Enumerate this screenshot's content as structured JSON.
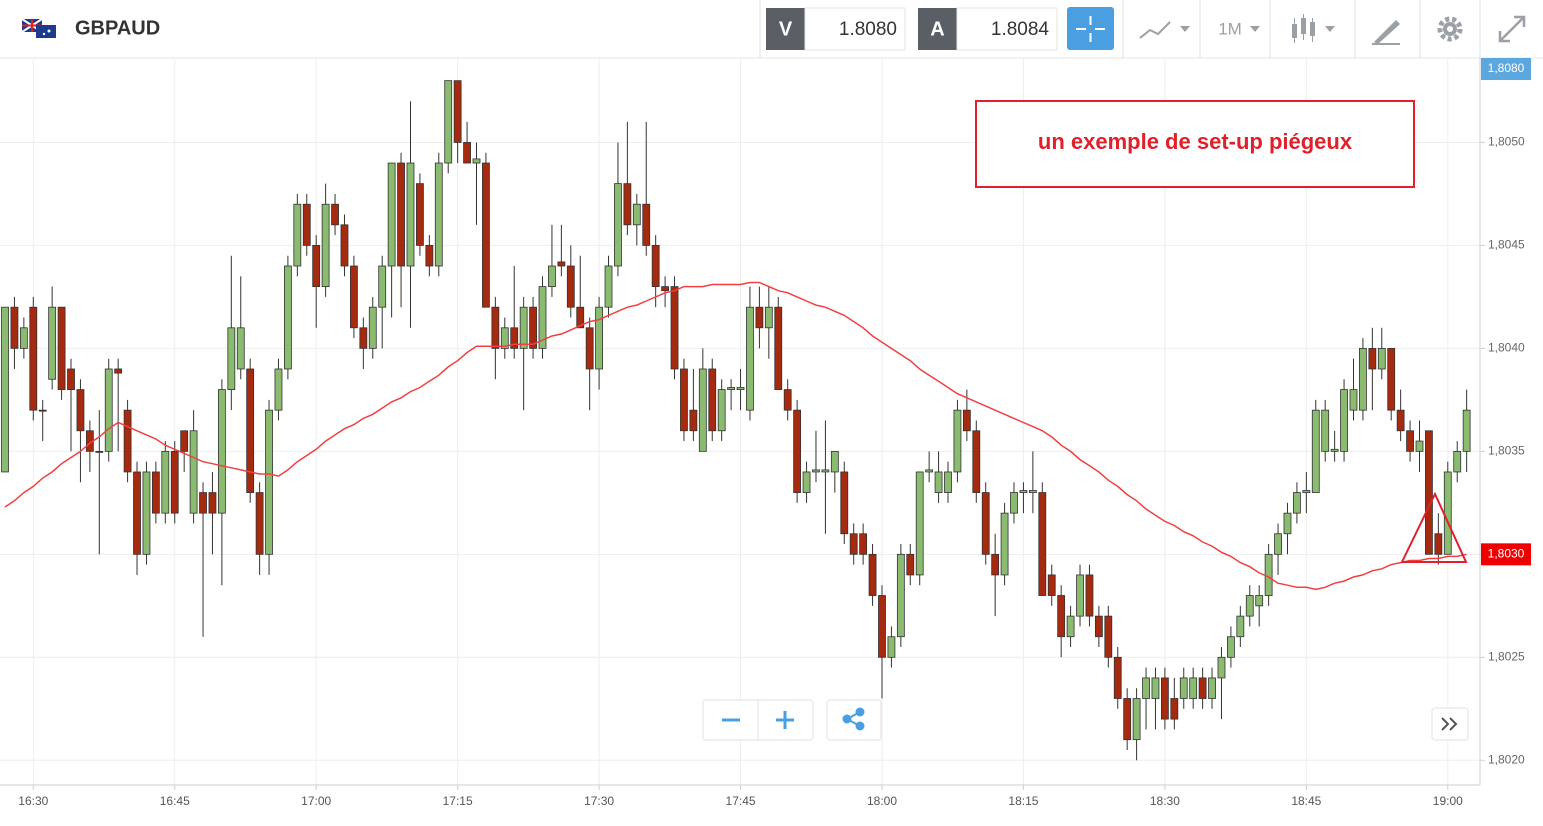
{
  "header": {
    "symbol": "GBPAUD",
    "bid": {
      "label": "V",
      "price": "1.8080"
    },
    "ask": {
      "label": "A",
      "price": "1.8084"
    },
    "timeframe": "1M"
  },
  "chart_data": {
    "type": "candlestick",
    "annotation": "un exemple de set-up piégeux",
    "up_color": "#8bbb70",
    "down_color": "#a52a10",
    "ma_color": "#f04040",
    "grid": true,
    "ylim": [
      1.80188,
      1.80541
    ],
    "yticks": [
      {
        "value": 1.802,
        "label": "1,8020"
      },
      {
        "value": 1.8025,
        "label": "1,8025"
      },
      {
        "value": 1.803,
        "label": "1,8030"
      },
      {
        "value": 1.8035,
        "label": "1,8035"
      },
      {
        "value": 1.804,
        "label": "1,8040"
      },
      {
        "value": 1.8045,
        "label": "1,8045"
      },
      {
        "value": 1.805,
        "label": "1,8050"
      }
    ],
    "price_badges": [
      {
        "value": 1.808,
        "label": "1,8080",
        "color": "#5ba7de"
      },
      {
        "value": 1.803,
        "label": "1,8030",
        "color": "#ee0000"
      }
    ],
    "categories": [
      null,
      null,
      null,
      "16:30",
      null,
      null,
      null,
      null,
      null,
      null,
      null,
      null,
      null,
      null,
      null,
      null,
      null,
      null,
      "16:45",
      null,
      null,
      null,
      null,
      null,
      null,
      null,
      null,
      null,
      null,
      null,
      null,
      null,
      null,
      "17:00",
      null,
      null,
      null,
      null,
      null,
      null,
      null,
      null,
      null,
      null,
      null,
      null,
      null,
      null,
      "17:15",
      null,
      null,
      null,
      null,
      null,
      null,
      null,
      null,
      null,
      null,
      null,
      null,
      null,
      null,
      "17:30",
      null,
      null,
      null,
      null,
      null,
      null,
      null,
      null,
      null,
      null,
      null,
      null,
      null,
      null,
      "17:45",
      null,
      null,
      null,
      null,
      null,
      null,
      null,
      null,
      null,
      null,
      null,
      null,
      null,
      null,
      "18:00",
      null,
      null,
      null,
      null,
      null,
      null,
      null,
      null,
      null,
      null,
      null,
      null,
      null,
      null,
      "18:15",
      null,
      null,
      null,
      null,
      null,
      null,
      null,
      null,
      null,
      null,
      null,
      null,
      null,
      null,
      "18:30",
      null,
      null,
      null,
      null,
      null,
      null,
      null,
      null,
      null,
      null,
      null,
      null,
      null,
      null,
      "18:45",
      null,
      null,
      null,
      null,
      null,
      null,
      null,
      null,
      null,
      null,
      null,
      null,
      null,
      null,
      "19:00",
      null,
      null
    ],
    "ohlc": [
      [
        1.8034,
        1.8042,
        1.8034,
        1.8042
      ],
      [
        1.8042,
        1.80425,
        1.8039,
        1.804
      ],
      [
        1.804,
        1.80415,
        1.80395,
        1.8041
      ],
      [
        1.8042,
        1.80425,
        1.80365,
        1.8037
      ],
      [
        1.8037,
        1.80375,
        1.80355,
        1.8037
      ],
      [
        1.80385,
        1.8043,
        1.8038,
        1.8042
      ],
      [
        1.8042,
        1.8042,
        1.80375,
        1.8038
      ],
      [
        1.8039,
        1.80395,
        1.8035,
        1.8038
      ],
      [
        1.8038,
        1.80385,
        1.80335,
        1.8036
      ],
      [
        1.8036,
        1.80365,
        1.8034,
        1.8035
      ],
      [
        1.8035,
        1.8037,
        1.803,
        1.8035
      ],
      [
        1.8035,
        1.80395,
        1.80345,
        1.8039
      ],
      [
        1.8039,
        1.80395,
        1.8035,
        1.80388
      ],
      [
        1.8037,
        1.80375,
        1.80335,
        1.8034
      ],
      [
        1.8034,
        1.80345,
        1.8029,
        1.803
      ],
      [
        1.803,
        1.80345,
        1.80295,
        1.8034
      ],
      [
        1.8034,
        1.80345,
        1.80315,
        1.8032
      ],
      [
        1.8032,
        1.80355,
        1.80315,
        1.8035
      ],
      [
        1.8035,
        1.80355,
        1.80315,
        1.8032
      ],
      [
        1.8036,
        1.8036,
        1.8034,
        1.8035
      ],
      [
        1.8032,
        1.8037,
        1.80315,
        1.8036
      ],
      [
        1.8033,
        1.80335,
        1.8026,
        1.8032
      ],
      [
        1.8033,
        1.8034,
        1.803,
        1.8032
      ],
      [
        1.8032,
        1.80385,
        1.80285,
        1.8038
      ],
      [
        1.8038,
        1.80445,
        1.8037,
        1.8041
      ],
      [
        1.8039,
        1.80435,
        1.80385,
        1.8041
      ],
      [
        1.8039,
        1.80395,
        1.80325,
        1.8033
      ],
      [
        1.8033,
        1.80335,
        1.8029,
        1.803
      ],
      [
        1.803,
        1.80375,
        1.8029,
        1.8037
      ],
      [
        1.8037,
        1.80395,
        1.80365,
        1.8039
      ],
      [
        1.8039,
        1.80445,
        1.80385,
        1.8044
      ],
      [
        1.8044,
        1.80475,
        1.80435,
        1.8047
      ],
      [
        1.8047,
        1.80475,
        1.80445,
        1.8045
      ],
      [
        1.8045,
        1.80455,
        1.8041,
        1.8043
      ],
      [
        1.8043,
        1.8048,
        1.80425,
        1.8047
      ],
      [
        1.8047,
        1.80475,
        1.80455,
        1.8046
      ],
      [
        1.8046,
        1.80465,
        1.80435,
        1.8044
      ],
      [
        1.8044,
        1.80445,
        1.80405,
        1.8041
      ],
      [
        1.8041,
        1.80415,
        1.8039,
        1.804
      ],
      [
        1.804,
        1.80425,
        1.80395,
        1.8042
      ],
      [
        1.8042,
        1.80445,
        1.804,
        1.8044
      ],
      [
        1.8044,
        1.8049,
        1.80415,
        1.8049
      ],
      [
        1.8049,
        1.80495,
        1.8042,
        1.8044
      ],
      [
        1.8044,
        1.8052,
        1.8041,
        1.8049
      ],
      [
        1.8048,
        1.80485,
        1.80445,
        1.8045
      ],
      [
        1.8045,
        1.80455,
        1.80435,
        1.8044
      ],
      [
        1.8044,
        1.80495,
        1.80435,
        1.8049
      ],
      [
        1.8049,
        1.8053,
        1.80485,
        1.8053
      ],
      [
        1.8053,
        1.8053,
        1.8049,
        1.805
      ],
      [
        1.805,
        1.8051,
        1.8049,
        1.8049
      ],
      [
        1.8049,
        1.805,
        1.8046,
        1.80492
      ],
      [
        1.8049,
        1.80495,
        1.8042,
        1.8042
      ],
      [
        1.8042,
        1.80425,
        1.80385,
        1.804
      ],
      [
        1.804,
        1.80415,
        1.80395,
        1.8041
      ],
      [
        1.8041,
        1.8044,
        1.80395,
        1.804
      ],
      [
        1.804,
        1.80425,
        1.8037,
        1.8042
      ],
      [
        1.8042,
        1.80425,
        1.80395,
        1.804
      ],
      [
        1.804,
        1.80435,
        1.80395,
        1.8043
      ],
      [
        1.8043,
        1.8046,
        1.80425,
        1.8044
      ],
      [
        1.80442,
        1.8046,
        1.80435,
        1.8044
      ],
      [
        1.8044,
        1.8045,
        1.80415,
        1.8042
      ],
      [
        1.8042,
        1.80445,
        1.8041,
        1.8041
      ],
      [
        1.8041,
        1.80415,
        1.8037,
        1.8039
      ],
      [
        1.8039,
        1.80425,
        1.8038,
        1.8042
      ],
      [
        1.8042,
        1.80445,
        1.80415,
        1.8044
      ],
      [
        1.8044,
        1.805,
        1.80435,
        1.8048
      ],
      [
        1.8048,
        1.8051,
        1.80455,
        1.8046
      ],
      [
        1.8046,
        1.80475,
        1.8045,
        1.8047
      ],
      [
        1.8047,
        1.8051,
        1.80445,
        1.8045
      ],
      [
        1.8045,
        1.80455,
        1.8042,
        1.8043
      ],
      [
        1.8043,
        1.80435,
        1.8042,
        1.80428
      ],
      [
        1.8043,
        1.80435,
        1.80385,
        1.8039
      ],
      [
        1.8039,
        1.80395,
        1.80355,
        1.8036
      ],
      [
        1.8037,
        1.8039,
        1.80355,
        1.8036
      ],
      [
        1.8035,
        1.804,
        1.8035,
        1.8039
      ],
      [
        1.8039,
        1.80395,
        1.80355,
        1.8036
      ],
      [
        1.8036,
        1.80385,
        1.80355,
        1.8038
      ],
      [
        1.8038,
        1.80385,
        1.8037,
        1.80381
      ],
      [
        1.8038,
        1.8039,
        1.8037,
        1.80381
      ],
      [
        1.8037,
        1.8043,
        1.80365,
        1.8042
      ],
      [
        1.8042,
        1.8043,
        1.804,
        1.8041
      ],
      [
        1.8041,
        1.8043,
        1.80395,
        1.8042
      ],
      [
        1.8042,
        1.80425,
        1.8038,
        1.8038
      ],
      [
        1.8038,
        1.80385,
        1.80365,
        1.8037
      ],
      [
        1.8037,
        1.80375,
        1.80325,
        1.8033
      ],
      [
        1.8033,
        1.80345,
        1.80325,
        1.8034
      ],
      [
        1.8034,
        1.8036,
        1.80335,
        1.80341
      ],
      [
        1.8034,
        1.80365,
        1.8031,
        1.80341
      ],
      [
        1.8034,
        1.8035,
        1.8033,
        1.8035
      ],
      [
        1.8034,
        1.80345,
        1.80305,
        1.8031
      ],
      [
        1.8031,
        1.80315,
        1.80295,
        1.803
      ],
      [
        1.8031,
        1.80315,
        1.80295,
        1.803
      ],
      [
        1.803,
        1.80305,
        1.80275,
        1.8028
      ],
      [
        1.8028,
        1.80285,
        1.8023,
        1.8025
      ],
      [
        1.8025,
        1.80265,
        1.80245,
        1.8026
      ],
      [
        1.8026,
        1.80305,
        1.80255,
        1.803
      ],
      [
        1.803,
        1.80305,
        1.80285,
        1.8029
      ],
      [
        1.8029,
        1.8034,
        1.80285,
        1.8034
      ],
      [
        1.8034,
        1.8035,
        1.80335,
        1.80341
      ],
      [
        1.8033,
        1.8035,
        1.80325,
        1.8034
      ],
      [
        1.8033,
        1.80345,
        1.80325,
        1.8034
      ],
      [
        1.8034,
        1.80375,
        1.80335,
        1.8037
      ],
      [
        1.8037,
        1.8038,
        1.80355,
        1.8036
      ],
      [
        1.8036,
        1.80365,
        1.80325,
        1.8033
      ],
      [
        1.8033,
        1.80335,
        1.80295,
        1.803
      ],
      [
        1.803,
        1.8031,
        1.8027,
        1.8029
      ],
      [
        1.8029,
        1.80325,
        1.80285,
        1.8032
      ],
      [
        1.8032,
        1.80335,
        1.80315,
        1.8033
      ],
      [
        1.8033,
        1.80335,
        1.8032,
        1.80331
      ],
      [
        1.8033,
        1.8035,
        1.8032,
        1.80331
      ],
      [
        1.8033,
        1.80335,
        1.8028,
        1.8028
      ],
      [
        1.8029,
        1.80295,
        1.80275,
        1.8028
      ],
      [
        1.8028,
        1.80285,
        1.8025,
        1.8026
      ],
      [
        1.8026,
        1.80275,
        1.80255,
        1.8027
      ],
      [
        1.8027,
        1.80295,
        1.80265,
        1.8029
      ],
      [
        1.8029,
        1.80295,
        1.80265,
        1.8027
      ],
      [
        1.8027,
        1.80275,
        1.80255,
        1.8026
      ],
      [
        1.8027,
        1.80275,
        1.80245,
        1.8025
      ],
      [
        1.8025,
        1.80255,
        1.80225,
        1.8023
      ],
      [
        1.8023,
        1.80235,
        1.80205,
        1.8021
      ],
      [
        1.8021,
        1.80235,
        1.802,
        1.8023
      ],
      [
        1.8023,
        1.80245,
        1.80215,
        1.8024
      ],
      [
        1.8023,
        1.80245,
        1.80215,
        1.8024
      ],
      [
        1.8024,
        1.80245,
        1.80215,
        1.8022
      ],
      [
        1.8023,
        1.8024,
        1.80215,
        1.8022
      ],
      [
        1.8023,
        1.80245,
        1.80225,
        1.8024
      ],
      [
        1.8023,
        1.80245,
        1.80225,
        1.8024
      ],
      [
        1.8024,
        1.80245,
        1.80225,
        1.8023
      ],
      [
        1.8023,
        1.80245,
        1.80225,
        1.8024
      ],
      [
        1.8024,
        1.80255,
        1.8022,
        1.8025
      ],
      [
        1.8025,
        1.80265,
        1.80245,
        1.8026
      ],
      [
        1.8026,
        1.80275,
        1.80255,
        1.8027
      ],
      [
        1.8027,
        1.80285,
        1.80265,
        1.8028
      ],
      [
        1.80275,
        1.80285,
        1.80265,
        1.8028
      ],
      [
        1.8028,
        1.80305,
        1.80275,
        1.803
      ],
      [
        1.803,
        1.80315,
        1.8029,
        1.8031
      ],
      [
        1.8031,
        1.80325,
        1.803,
        1.8032
      ],
      [
        1.8032,
        1.80335,
        1.80315,
        1.8033
      ],
      [
        1.8033,
        1.8034,
        1.8032,
        1.80331
      ],
      [
        1.8033,
        1.80375,
        1.8033,
        1.8037
      ],
      [
        1.8035,
        1.80375,
        1.80345,
        1.8037
      ],
      [
        1.8035,
        1.8036,
        1.80345,
        1.80351
      ],
      [
        1.8035,
        1.80385,
        1.80345,
        1.8038
      ],
      [
        1.8037,
        1.80395,
        1.80365,
        1.8038
      ],
      [
        1.8037,
        1.80405,
        1.80365,
        1.804
      ],
      [
        1.804,
        1.8041,
        1.8037,
        1.8039
      ],
      [
        1.8039,
        1.8041,
        1.80385,
        1.804
      ],
      [
        1.804,
        1.804,
        1.80365,
        1.8037
      ],
      [
        1.8037,
        1.8038,
        1.80355,
        1.8036
      ],
      [
        1.8036,
        1.80365,
        1.80345,
        1.8035
      ],
      [
        1.8035,
        1.80365,
        1.8034,
        1.80355
      ],
      [
        1.8036,
        1.8036,
        1.803,
        1.803
      ],
      [
        1.8031,
        1.8032,
        1.80295,
        1.803
      ],
      [
        1.803,
        1.80345,
        1.803,
        1.8034
      ],
      [
        1.8034,
        1.80355,
        1.80335,
        1.8035
      ],
      [
        1.8035,
        1.8038,
        1.8034,
        1.8037
      ]
    ],
    "ma": [
      1.80323,
      1.80326,
      1.8033,
      1.80333,
      1.80337,
      1.8034,
      1.80344,
      1.80347,
      1.8035,
      1.80354,
      1.80357,
      1.80361,
      1.80364,
      1.80362,
      1.8036,
      1.80358,
      1.80356,
      1.80353,
      1.80351,
      1.80349,
      1.80347,
      1.80345,
      1.80344,
      1.80343,
      1.80342,
      1.80341,
      1.8034,
      1.80339,
      1.80339,
      1.80338,
      1.80341,
      1.80345,
      1.80348,
      1.80351,
      1.80355,
      1.80358,
      1.80361,
      1.80363,
      1.80366,
      1.80368,
      1.80371,
      1.80374,
      1.80376,
      1.80379,
      1.80381,
      1.80384,
      1.80387,
      1.80391,
      1.80394,
      1.80398,
      1.80401,
      1.80401,
      1.80401,
      1.80401,
      1.80402,
      1.80402,
      1.80402,
      1.80404,
      1.80406,
      1.80407,
      1.80409,
      1.80411,
      1.80413,
      1.80414,
      1.80416,
      1.80418,
      1.8042,
      1.80421,
      1.80423,
      1.80425,
      1.80427,
      1.80428,
      1.8043,
      1.8043,
      1.8043,
      1.80431,
      1.80431,
      1.80431,
      1.80431,
      1.80432,
      1.80432,
      1.8043,
      1.80428,
      1.80427,
      1.80425,
      1.80423,
      1.80421,
      1.8042,
      1.80418,
      1.80416,
      1.80413,
      1.8041,
      1.80406,
      1.80403,
      1.804,
      1.80397,
      1.80394,
      1.8039,
      1.80387,
      1.80384,
      1.80381,
      1.80378,
      1.80376,
      1.80374,
      1.80372,
      1.8037,
      1.80368,
      1.80366,
      1.80364,
      1.80362,
      1.8036,
      1.80357,
      1.80353,
      1.8035,
      1.80346,
      1.80343,
      1.8034,
      1.80336,
      1.80333,
      1.80329,
      1.80326,
      1.80322,
      1.80319,
      1.80316,
      1.80314,
      1.80311,
      1.80309,
      1.80306,
      1.80304,
      1.80301,
      1.80299,
      1.80296,
      1.80294,
      1.80291,
      1.80289,
      1.80286,
      1.80285,
      1.80284,
      1.80284,
      1.80283,
      1.80284,
      1.80286,
      1.80287,
      1.80289,
      1.8029,
      1.80292,
      1.80293,
      1.80295,
      1.80296,
      1.80297,
      1.80297,
      1.80298,
      1.80298,
      1.80299,
      1.80299,
      1.803
    ]
  }
}
